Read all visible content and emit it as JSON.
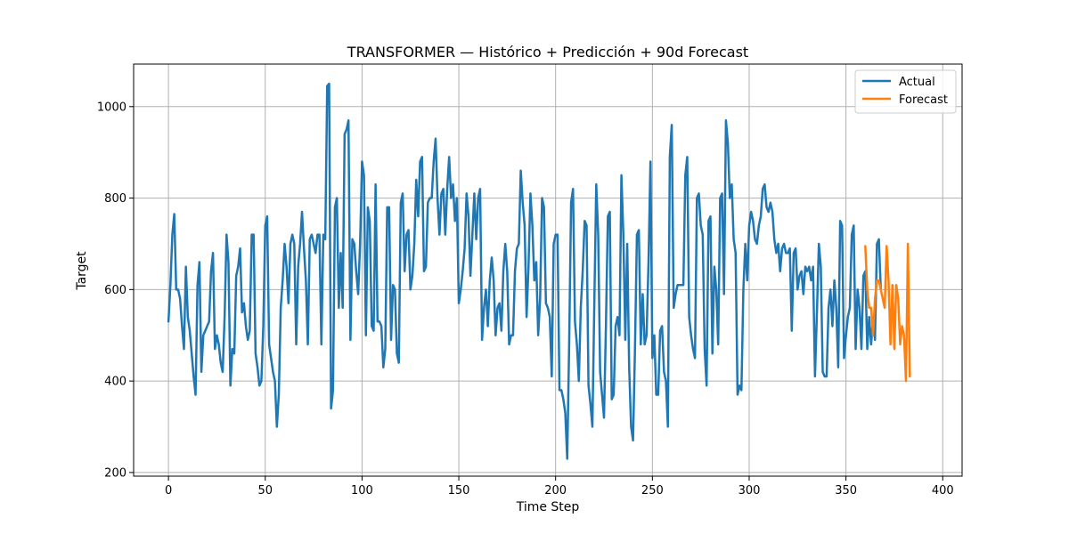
{
  "chart_data": {
    "type": "line",
    "title": "TRANSFORMER — Histórico + Predicción + 90d Forecast",
    "xlabel": "Time Step",
    "ylabel": "Target",
    "xlim": [
      -18,
      410
    ],
    "ylim": [
      192,
      1093
    ],
    "xticks": [
      0,
      50,
      100,
      150,
      200,
      250,
      300,
      350,
      400
    ],
    "yticks": [
      200,
      400,
      600,
      800,
      1000
    ],
    "grid": true,
    "legend_position": "upper-right",
    "series": [
      {
        "name": "Actual",
        "color": "#1f77b4",
        "x_start": 0,
        "values": [
          530,
          610,
          720,
          765,
          600,
          600,
          580,
          520,
          470,
          650,
          540,
          510,
          460,
          410,
          370,
          610,
          660,
          420,
          500,
          510,
          520,
          530,
          640,
          680,
          470,
          500,
          480,
          440,
          420,
          540,
          720,
          660,
          390,
          470,
          460,
          630,
          650,
          690,
          550,
          570,
          520,
          490,
          510,
          720,
          720,
          460,
          430,
          390,
          400,
          520,
          740,
          760,
          480,
          450,
          420,
          400,
          300,
          370,
          560,
          620,
          700,
          650,
          570,
          700,
          720,
          700,
          480,
          650,
          700,
          770,
          690,
          620,
          480,
          710,
          720,
          700,
          680,
          720,
          720,
          480,
          720,
          710,
          1045,
          1050,
          340,
          380,
          780,
          800,
          560,
          680,
          560,
          940,
          950,
          970,
          490,
          710,
          700,
          640,
          590,
          700,
          880,
          850,
          500,
          780,
          750,
          520,
          510,
          830,
          530,
          530,
          520,
          430,
          470,
          780,
          780,
          490,
          610,
          600,
          460,
          440,
          790,
          810,
          640,
          720,
          730,
          600,
          630,
          700,
          840,
          760,
          880,
          890,
          640,
          650,
          790,
          800,
          800,
          880,
          930,
          800,
          720,
          810,
          820,
          720,
          820,
          890,
          800,
          830,
          750,
          800,
          570,
          600,
          640,
          690,
          810,
          760,
          630,
          720,
          810,
          710,
          800,
          820,
          490,
          560,
          600,
          520,
          620,
          670,
          620,
          500,
          560,
          570,
          510,
          640,
          700,
          640,
          480,
          500,
          500,
          640,
          690,
          700,
          860,
          790,
          740,
          540,
          650,
          810,
          740,
          620,
          660,
          500,
          580,
          800,
          780,
          570,
          560,
          540,
          410,
          700,
          720,
          720,
          380,
          380,
          360,
          330,
          230,
          480,
          790,
          820,
          530,
          480,
          400,
          560,
          640,
          750,
          740,
          390,
          350,
          300,
          570,
          830,
          720,
          420,
          370,
          320,
          520,
          760,
          770,
          360,
          370,
          520,
          540,
          500,
          850,
          720,
          490,
          700,
          430,
          300,
          270,
          470,
          720,
          730,
          480,
          590,
          480,
          500,
          660,
          880,
          450,
          500,
          370,
          370,
          510,
          520,
          420,
          400,
          300,
          890,
          960,
          560,
          590,
          610,
          610,
          610,
          610,
          850,
          890,
          540,
          500,
          470,
          450,
          800,
          810,
          740,
          720,
          470,
          390,
          750,
          760,
          460,
          650,
          600,
          480,
          800,
          810,
          590,
          970,
          920,
          800,
          830,
          710,
          680,
          370,
          390,
          380,
          600,
          700,
          620,
          740,
          770,
          750,
          710,
          700,
          740,
          760,
          820,
          830,
          780,
          770,
          790,
          770,
          710,
          680,
          700,
          640,
          690,
          700,
          680,
          680,
          690,
          510,
          680,
          690,
          600,
          630,
          640,
          590,
          650,
          640,
          650,
          620,
          650,
          410,
          550,
          700,
          650,
          420,
          410,
          410,
          560,
          600,
          520,
          620,
          560,
          430,
          750,
          740,
          450,
          500,
          540,
          560,
          720,
          740,
          470,
          600,
          560,
          470,
          630,
          640,
          470,
          540,
          480,
          540,
          490,
          700,
          710,
          600
        ]
      },
      {
        "name": "Forecast",
        "color": "#ff7f0e",
        "x_start": 360,
        "values": [
          695,
          600,
          560,
          560,
          500,
          580,
          620,
          620,
          600,
          580,
          560,
          695,
          620,
          480,
          610,
          470,
          610,
          580,
          480,
          520,
          500,
          400,
          700,
          410
        ]
      }
    ]
  }
}
